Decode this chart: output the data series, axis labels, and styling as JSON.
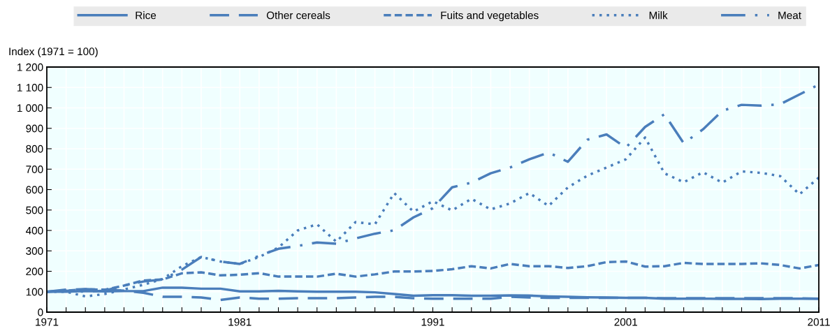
{
  "chart_data": {
    "type": "line",
    "ylabel": "Index (1971 = 100)",
    "legend": "top",
    "grid": true,
    "x": [
      1971,
      1972,
      1973,
      1974,
      1975,
      1976,
      1977,
      1978,
      1979,
      1980,
      1981,
      1982,
      1983,
      1984,
      1985,
      1986,
      1987,
      1988,
      1989,
      1990,
      1991,
      1992,
      1993,
      1994,
      1995,
      1996,
      1997,
      1998,
      1999,
      2000,
      2001,
      2002,
      2003,
      2004,
      2005,
      2006,
      2007,
      2008,
      2009,
      2010,
      2011
    ],
    "xlim": [
      1971,
      2011
    ],
    "xticks": [
      1971,
      {
        "value": 1972,
        "label": null
      },
      {
        "value": 1973,
        "label": null
      },
      {
        "value": 1974,
        "label": null
      },
      {
        "value": 1975,
        "label": null
      },
      {
        "value": 1976,
        "label": null
      },
      {
        "value": 1977,
        "label": null
      },
      {
        "value": 1978,
        "label": null
      },
      {
        "value": 1979,
        "label": null
      },
      {
        "value": 1980,
        "label": null
      },
      1981,
      {
        "value": 1982,
        "label": null
      },
      {
        "value": 1983,
        "label": null
      },
      {
        "value": 1984,
        "label": null
      },
      {
        "value": 1985,
        "label": null
      },
      {
        "value": 1986,
        "label": null
      },
      {
        "value": 1987,
        "label": null
      },
      {
        "value": 1988,
        "label": null
      },
      {
        "value": 1989,
        "label": null
      },
      {
        "value": 1990,
        "label": null
      },
      1991,
      {
        "value": 1992,
        "label": null
      },
      {
        "value": 1993,
        "label": null
      },
      {
        "value": 1994,
        "label": null
      },
      {
        "value": 1995,
        "label": null
      },
      {
        "value": 1996,
        "label": null
      },
      {
        "value": 1997,
        "label": null
      },
      {
        "value": 1998,
        "label": null
      },
      {
        "value": 1999,
        "label": null
      },
      {
        "value": 2000,
        "label": null
      },
      2001,
      {
        "value": 2002,
        "label": null
      },
      {
        "value": 2003,
        "label": null
      },
      {
        "value": 2004,
        "label": null
      },
      {
        "value": 2005,
        "label": null
      },
      {
        "value": 2006,
        "label": null
      },
      {
        "value": 2007,
        "label": null
      },
      {
        "value": 2008,
        "label": null
      },
      {
        "value": 2009,
        "label": null
      },
      {
        "value": 2010,
        "label": null
      },
      2011
    ],
    "ylim": [
      0,
      1200
    ],
    "yticks": [
      0,
      100,
      200,
      300,
      400,
      500,
      600,
      700,
      800,
      900,
      {
        "value": 1000,
        "label": "1 000"
      },
      {
        "value": 1100,
        "label": "1 100"
      },
      {
        "value": 1200,
        "label": "1 200"
      }
    ],
    "series": [
      {
        "name": "Rice",
        "color": "#4a7ebb",
        "line_style": "solid",
        "values": [
          100,
          100,
          103,
          102,
          103,
          103,
          120,
          120,
          115,
          115,
          102,
          102,
          104,
          102,
          100,
          100,
          100,
          97,
          89,
          80,
          83,
          83,
          80,
          80,
          82,
          81,
          77,
          75,
          73,
          72,
          70,
          70,
          66,
          66,
          66,
          65,
          65,
          64,
          66,
          66,
          66
        ]
      },
      {
        "name": "Other cereals",
        "color": "#4a7ebb",
        "line_style": "longdash",
        "values": [
          100,
          110,
          113,
          110,
          105,
          95,
          75,
          75,
          72,
          60,
          72,
          66,
          66,
          68,
          68,
          68,
          72,
          75,
          75,
          68,
          66,
          66,
          66,
          66,
          75,
          72,
          70,
          70,
          70,
          70,
          70,
          70,
          68,
          68,
          68,
          68,
          68,
          68,
          68,
          68,
          66
        ]
      },
      {
        "name": "Fuits and vegetables",
        "color": "#4a7ebb",
        "line_style": "dashed",
        "values": [
          100,
          105,
          112,
          110,
          130,
          155,
          160,
          190,
          195,
          180,
          183,
          191,
          174,
          174,
          174,
          188,
          174,
          185,
          199,
          199,
          202,
          210,
          225,
          214,
          236,
          225,
          225,
          216,
          225,
          245,
          248,
          223,
          225,
          241,
          236,
          236,
          236,
          239,
          231,
          214,
          231
        ]
      },
      {
        "name": "Milk",
        "color": "#4a7ebb",
        "line_style": "dotted",
        "values": [
          100,
          100,
          77,
          89,
          111,
          134,
          162,
          225,
          270,
          248,
          236,
          270,
          316,
          400,
          430,
          345,
          441,
          430,
          583,
          492,
          543,
          498,
          555,
          503,
          532,
          583,
          520,
          611,
          668,
          708,
          748,
          855,
          680,
          636,
          685,
          634,
          689,
          682,
          666,
          577,
          659
        ]
      },
      {
        "name": "Meat",
        "color": "#4a7ebb",
        "line_style": "dashdot",
        "values": [
          100,
          105,
          100,
          105,
          130,
          150,
          160,
          208,
          270,
          248,
          236,
          276,
          310,
          324,
          341,
          335,
          361,
          384,
          401,
          464,
          509,
          611,
          634,
          680,
          708,
          748,
          782,
          736,
          844,
          870,
          805,
          907,
          969,
          827,
          895,
          986,
          1015,
          1011,
          1018,
          1066,
          1114
        ]
      }
    ]
  }
}
